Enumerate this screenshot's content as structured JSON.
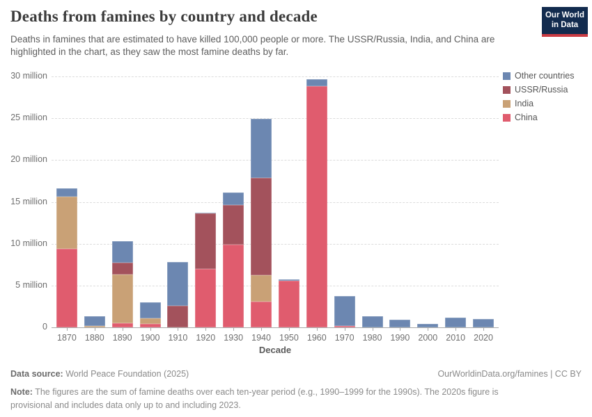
{
  "header": {
    "title": "Deaths from famines by country and decade",
    "subtitle": "Deaths in famines that are estimated to have killed 100,000 people or more. The USSR/Russia, India, and China are highlighted in the chart, as they saw the most famine deaths by far.",
    "logo": {
      "line1": "Our World",
      "line2": "in Data",
      "bg_color": "#122b4e",
      "accent_color": "#ca3b43"
    }
  },
  "chart_data": {
    "type": "bar",
    "stacked": true,
    "title": "Deaths from famines by country and decade",
    "xlabel": "Decade",
    "ylabel": "",
    "unit": "deaths (millions)",
    "ylim": [
      0,
      30
    ],
    "grid": "horizontal-dashed",
    "legend_position": "top-right",
    "categories": [
      "1870",
      "1880",
      "1890",
      "1900",
      "1910",
      "1920",
      "1930",
      "1940",
      "1950",
      "1960",
      "1970",
      "1980",
      "1990",
      "2000",
      "2010",
      "2020"
    ],
    "y_ticks": [
      {
        "value": 0,
        "label": "0"
      },
      {
        "value": 5,
        "label": "5 million"
      },
      {
        "value": 10,
        "label": "10 million"
      },
      {
        "value": 15,
        "label": "15 million"
      },
      {
        "value": 20,
        "label": "20 million"
      },
      {
        "value": 25,
        "label": "25 million"
      },
      {
        "value": 30,
        "label": "30 million"
      }
    ],
    "stack_order_note": "series listed bottom-to-top of each stacked bar; values in millions of deaths",
    "series": [
      {
        "name": "China",
        "color": "#e05c6e",
        "values": [
          9.4,
          0,
          0.5,
          0.4,
          0,
          7.0,
          9.9,
          3.1,
          5.6,
          28.8,
          0.2,
          0,
          0,
          0,
          0,
          0
        ]
      },
      {
        "name": "India",
        "color": "#c9a176",
        "values": [
          6.2,
          0.15,
          5.8,
          0.65,
          0,
          0,
          0,
          3.1,
          0,
          0,
          0,
          0,
          0,
          0,
          0,
          0
        ]
      },
      {
        "name": "USSR/Russia",
        "color": "#a3525c",
        "values": [
          0,
          0,
          1.4,
          0,
          2.6,
          6.6,
          4.7,
          11.7,
          0,
          0,
          0,
          0,
          0,
          0,
          0,
          0
        ]
      },
      {
        "name": "Other countries",
        "color": "#6c87b1",
        "values": [
          1.0,
          1.2,
          2.6,
          1.95,
          5.2,
          0.15,
          1.5,
          7.0,
          0.1,
          0.9,
          3.5,
          1.35,
          0.95,
          0.45,
          1.15,
          1.0
        ]
      }
    ],
    "legend_order": [
      "Other countries",
      "USSR/Russia",
      "India",
      "China"
    ]
  },
  "footer": {
    "data_source_label": "Data source:",
    "data_source_value": "World Peace Foundation (2025)",
    "attribution": "OurWorldinData.org/famines | CC BY",
    "note_label": "Note:",
    "note_text": "The figures are the sum of famine deaths over each ten-year period (e.g., 1990–1999 for the 1990s). The 2020s figure is provisional and includes data only up to and including 2023."
  }
}
